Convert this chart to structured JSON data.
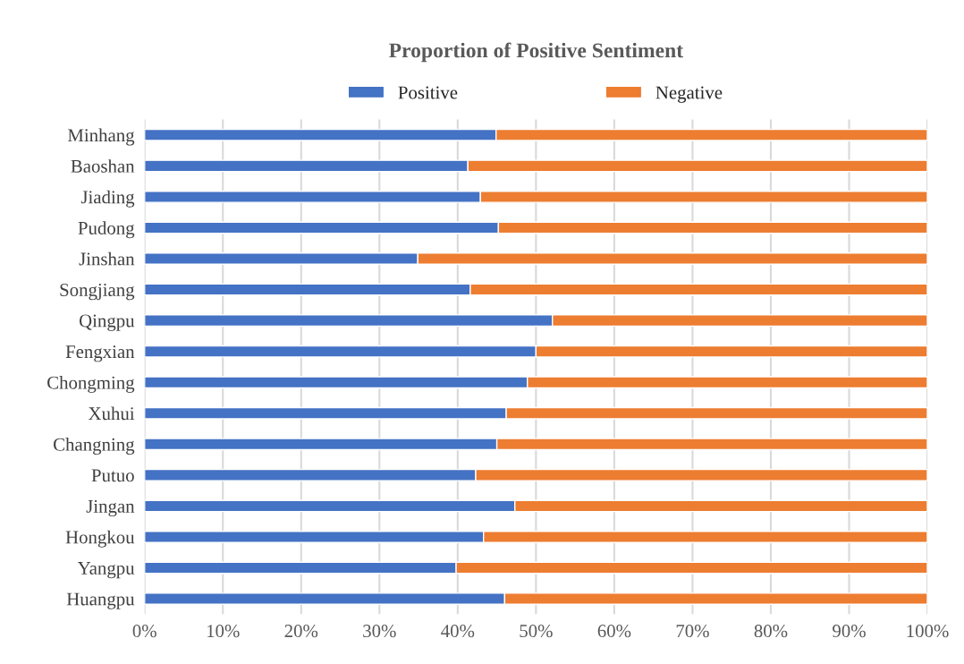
{
  "chart_data": {
    "type": "bar",
    "orientation": "horizontal",
    "stacked": true,
    "title": "Proportion of Positive Sentiment",
    "categories": [
      "Minhang",
      "Baoshan",
      "Jiading",
      "Pudong",
      "Jinshan",
      "Songjiang",
      "Qingpu",
      "Fengxian",
      "Chongming",
      "Xuhui",
      "Changning",
      "Putuo",
      "Jingan",
      "Hongkou",
      "Yangpu",
      "Huangpu"
    ],
    "series": [
      {
        "name": "Positive",
        "color": "#4472c4",
        "values": [
          44.9,
          41.3,
          42.9,
          45.2,
          34.9,
          41.6,
          52.1,
          50.0,
          48.9,
          46.2,
          45.0,
          42.3,
          47.3,
          43.3,
          39.8,
          46.0
        ]
      },
      {
        "name": "Negative",
        "color": "#ed7d31",
        "values": [
          55.1,
          58.7,
          57.1,
          54.8,
          65.1,
          58.4,
          47.9,
          50.0,
          51.1,
          53.8,
          55.0,
          57.7,
          52.7,
          56.7,
          60.2,
          54.0
        ]
      }
    ],
    "xlim": [
      0,
      100
    ],
    "xticks": [
      {
        "value": 0,
        "label": "0%"
      },
      {
        "value": 10,
        "label": "10%"
      },
      {
        "value": 20,
        "label": "20%"
      },
      {
        "value": 30,
        "label": "30%"
      },
      {
        "value": 40,
        "label": "40%"
      },
      {
        "value": 50,
        "label": "50%"
      },
      {
        "value": 60,
        "label": "60%"
      },
      {
        "value": 70,
        "label": "70%"
      },
      {
        "value": 80,
        "label": "80%"
      },
      {
        "value": 90,
        "label": "90%"
      },
      {
        "value": 100,
        "label": "100%"
      }
    ],
    "grid": "x",
    "legend": "top"
  }
}
